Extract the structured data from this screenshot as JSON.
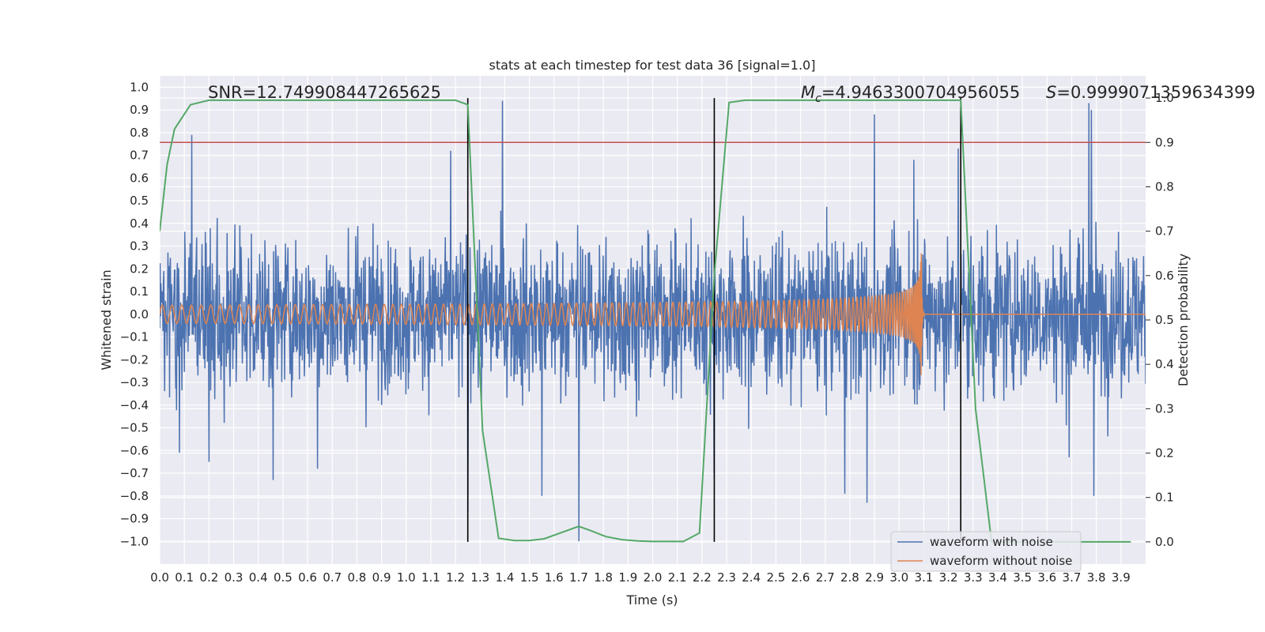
{
  "chart_data": {
    "type": "line",
    "title": "stats at each timestep for test data 36 [signal=1.0]",
    "xlabel": "Time (s)",
    "ylabel": "Whitened strain",
    "ylabel_right": "Detection probability",
    "xlim": [
      0.0,
      4.0
    ],
    "ylim": [
      -1.1,
      1.05
    ],
    "ylim_right": [
      -0.05,
      1.05
    ],
    "x_ticks": [
      "0.0",
      "0.1",
      "0.2",
      "0.3",
      "0.4",
      "0.5",
      "0.6",
      "0.7",
      "0.8",
      "0.9",
      "1.0",
      "1.1",
      "1.2",
      "1.3",
      "1.4",
      "1.5",
      "1.6",
      "1.7",
      "1.8",
      "1.9",
      "2.0",
      "2.1",
      "2.2",
      "2.3",
      "2.4",
      "2.5",
      "2.6",
      "2.7",
      "2.8",
      "2.9",
      "3.0",
      "3.1",
      "3.2",
      "3.3",
      "3.4",
      "3.5",
      "3.6",
      "3.7",
      "3.8",
      "3.9"
    ],
    "y_ticks_left": [
      "1.0",
      "0.9",
      "0.8",
      "0.7",
      "0.6",
      "0.5",
      "0.4",
      "0.3",
      "0.2",
      "0.1",
      "0.0",
      "−0.1",
      "−0.2",
      "−0.3",
      "−0.4",
      "−0.5",
      "−0.6",
      "−0.7",
      "−0.8",
      "−0.9",
      "−1.0"
    ],
    "y_ticks_right": [
      "1.0",
      "0.9",
      "0.8",
      "0.7",
      "0.6",
      "0.5",
      "0.4",
      "0.3",
      "0.2",
      "0.1",
      "0.0"
    ],
    "annotations": {
      "snr": "SNR=12.749908447265625",
      "mc": "=4.9463300704956055",
      "mc_symbol": "M",
      "mc_subscript": "c",
      "s": "=0.9999071359634399",
      "s_symbol": "S"
    },
    "threshold": {
      "value": 0.9,
      "axis": "right",
      "color": "#c44e52"
    },
    "vertical_markers": [
      1.25,
      2.25,
      3.25
    ],
    "legend": {
      "position": "bottom-right",
      "entries": [
        "waveform with noise",
        "waveform without noise"
      ]
    },
    "series": [
      {
        "name": "waveform with noise",
        "color": "#4c72b0",
        "kind": "noise",
        "typical_amplitude": 0.28,
        "spikes": [
          [
            1.39,
            0.94
          ],
          [
            0.13,
            0.79
          ],
          [
            2.9,
            0.88
          ],
          [
            3.77,
            0.93
          ],
          [
            3.78,
            0.9
          ],
          [
            1.7,
            -1.0
          ],
          [
            1.25,
            -0.87
          ],
          [
            2.25,
            -0.7
          ],
          [
            0.46,
            -0.73
          ],
          [
            2.87,
            -0.83
          ],
          [
            3.79,
            -0.8
          ],
          [
            1.55,
            -0.8
          ],
          [
            0.2,
            -0.65
          ],
          [
            3.69,
            -0.63
          ],
          [
            2.78,
            -0.79
          ],
          [
            0.08,
            -0.61
          ],
          [
            3.24,
            0.73
          ],
          [
            0.64,
            -0.68
          ],
          [
            3.06,
            0.68
          ],
          [
            1.18,
            0.72
          ]
        ]
      },
      {
        "name": "waveform without noise",
        "color": "#dd8452",
        "kind": "chirp",
        "start_freq_hz": 25,
        "merger_time": 3.09,
        "amplitude_start": 0.04,
        "amplitude_peak": 0.3
      },
      {
        "name": "Detection probability",
        "color": "#55a868",
        "axis": "right",
        "x": [
          0.0,
          0.03,
          0.06,
          0.125,
          0.2,
          0.3,
          0.4,
          0.5,
          0.6,
          0.7,
          0.8,
          0.9,
          1.0,
          1.1,
          1.2,
          1.25,
          1.31,
          1.375,
          1.44,
          1.5,
          1.56,
          1.625,
          1.7,
          1.75,
          1.81,
          1.875,
          1.94,
          2.0,
          2.06,
          2.125,
          2.19,
          2.25,
          2.31,
          2.375,
          2.44,
          2.5,
          2.6,
          2.7,
          2.8,
          2.9,
          3.0,
          3.1,
          3.2,
          3.25,
          3.31,
          3.375,
          3.44,
          3.5,
          3.6,
          3.7,
          3.8,
          3.94
        ],
        "y": [
          0.7,
          0.85,
          0.93,
          0.985,
          0.995,
          0.995,
          0.995,
          0.995,
          0.995,
          0.995,
          0.995,
          0.995,
          0.995,
          0.995,
          0.995,
          0.985,
          0.25,
          0.008,
          0.003,
          0.003,
          0.007,
          0.02,
          0.035,
          0.025,
          0.012,
          0.005,
          0.002,
          0.001,
          0.001,
          0.001,
          0.02,
          0.6,
          0.99,
          0.995,
          0.995,
          0.995,
          0.995,
          0.995,
          0.995,
          0.995,
          0.995,
          0.995,
          0.995,
          0.995,
          0.3,
          0.0,
          0.0,
          0.0,
          0.0,
          0.0,
          0.0,
          0.0
        ]
      }
    ]
  }
}
